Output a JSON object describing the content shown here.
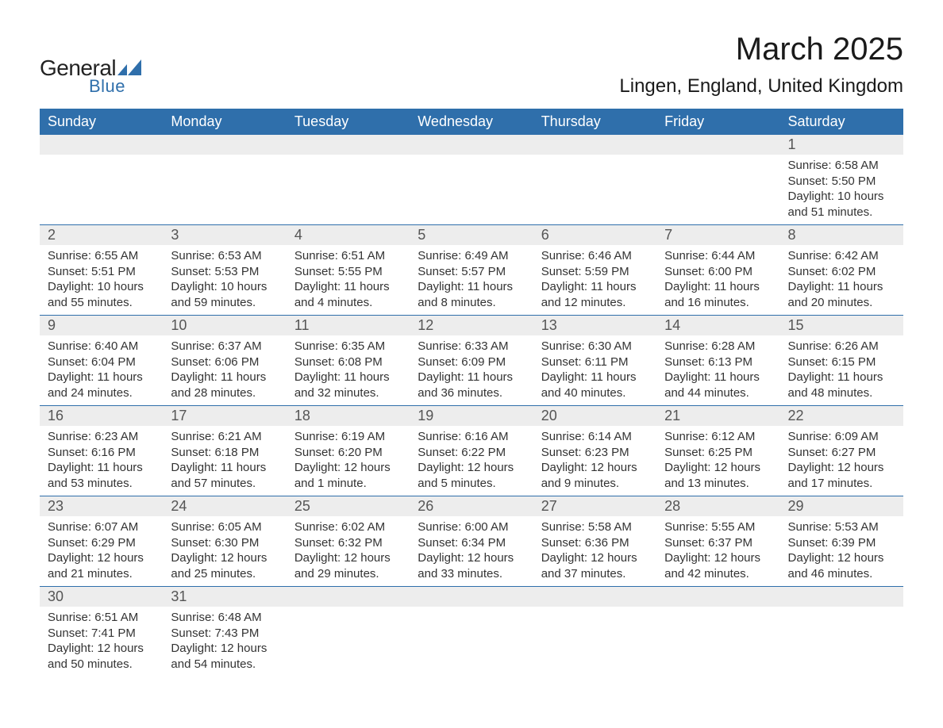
{
  "brand": {
    "name1": "General",
    "name2": "Blue"
  },
  "title": "March 2025",
  "location": "Lingen, England, United Kingdom",
  "colors": {
    "header_bg": "#2f6fab",
    "header_text": "#ffffff",
    "daynum_bg": "#ededed",
    "row_border": "#2f6fab",
    "body_text": "#333333",
    "title_text": "#1a1a1a",
    "logo_accent": "#2f6fab"
  },
  "layout": {
    "columns": 7,
    "rows": 6,
    "col_width_pct": 14.28
  },
  "day_headers": [
    "Sunday",
    "Monday",
    "Tuesday",
    "Wednesday",
    "Thursday",
    "Friday",
    "Saturday"
  ],
  "weeks": [
    [
      {
        "num": "",
        "lines": []
      },
      {
        "num": "",
        "lines": []
      },
      {
        "num": "",
        "lines": []
      },
      {
        "num": "",
        "lines": []
      },
      {
        "num": "",
        "lines": []
      },
      {
        "num": "",
        "lines": []
      },
      {
        "num": "1",
        "lines": [
          "Sunrise: 6:58 AM",
          "Sunset: 5:50 PM",
          "Daylight: 10 hours and 51 minutes."
        ]
      }
    ],
    [
      {
        "num": "2",
        "lines": [
          "Sunrise: 6:55 AM",
          "Sunset: 5:51 PM",
          "Daylight: 10 hours and 55 minutes."
        ]
      },
      {
        "num": "3",
        "lines": [
          "Sunrise: 6:53 AM",
          "Sunset: 5:53 PM",
          "Daylight: 10 hours and 59 minutes."
        ]
      },
      {
        "num": "4",
        "lines": [
          "Sunrise: 6:51 AM",
          "Sunset: 5:55 PM",
          "Daylight: 11 hours and 4 minutes."
        ]
      },
      {
        "num": "5",
        "lines": [
          "Sunrise: 6:49 AM",
          "Sunset: 5:57 PM",
          "Daylight: 11 hours and 8 minutes."
        ]
      },
      {
        "num": "6",
        "lines": [
          "Sunrise: 6:46 AM",
          "Sunset: 5:59 PM",
          "Daylight: 11 hours and 12 minutes."
        ]
      },
      {
        "num": "7",
        "lines": [
          "Sunrise: 6:44 AM",
          "Sunset: 6:00 PM",
          "Daylight: 11 hours and 16 minutes."
        ]
      },
      {
        "num": "8",
        "lines": [
          "Sunrise: 6:42 AM",
          "Sunset: 6:02 PM",
          "Daylight: 11 hours and 20 minutes."
        ]
      }
    ],
    [
      {
        "num": "9",
        "lines": [
          "Sunrise: 6:40 AM",
          "Sunset: 6:04 PM",
          "Daylight: 11 hours and 24 minutes."
        ]
      },
      {
        "num": "10",
        "lines": [
          "Sunrise: 6:37 AM",
          "Sunset: 6:06 PM",
          "Daylight: 11 hours and 28 minutes."
        ]
      },
      {
        "num": "11",
        "lines": [
          "Sunrise: 6:35 AM",
          "Sunset: 6:08 PM",
          "Daylight: 11 hours and 32 minutes."
        ]
      },
      {
        "num": "12",
        "lines": [
          "Sunrise: 6:33 AM",
          "Sunset: 6:09 PM",
          "Daylight: 11 hours and 36 minutes."
        ]
      },
      {
        "num": "13",
        "lines": [
          "Sunrise: 6:30 AM",
          "Sunset: 6:11 PM",
          "Daylight: 11 hours and 40 minutes."
        ]
      },
      {
        "num": "14",
        "lines": [
          "Sunrise: 6:28 AM",
          "Sunset: 6:13 PM",
          "Daylight: 11 hours and 44 minutes."
        ]
      },
      {
        "num": "15",
        "lines": [
          "Sunrise: 6:26 AM",
          "Sunset: 6:15 PM",
          "Daylight: 11 hours and 48 minutes."
        ]
      }
    ],
    [
      {
        "num": "16",
        "lines": [
          "Sunrise: 6:23 AM",
          "Sunset: 6:16 PM",
          "Daylight: 11 hours and 53 minutes."
        ]
      },
      {
        "num": "17",
        "lines": [
          "Sunrise: 6:21 AM",
          "Sunset: 6:18 PM",
          "Daylight: 11 hours and 57 minutes."
        ]
      },
      {
        "num": "18",
        "lines": [
          "Sunrise: 6:19 AM",
          "Sunset: 6:20 PM",
          "Daylight: 12 hours and 1 minute."
        ]
      },
      {
        "num": "19",
        "lines": [
          "Sunrise: 6:16 AM",
          "Sunset: 6:22 PM",
          "Daylight: 12 hours and 5 minutes."
        ]
      },
      {
        "num": "20",
        "lines": [
          "Sunrise: 6:14 AM",
          "Sunset: 6:23 PM",
          "Daylight: 12 hours and 9 minutes."
        ]
      },
      {
        "num": "21",
        "lines": [
          "Sunrise: 6:12 AM",
          "Sunset: 6:25 PM",
          "Daylight: 12 hours and 13 minutes."
        ]
      },
      {
        "num": "22",
        "lines": [
          "Sunrise: 6:09 AM",
          "Sunset: 6:27 PM",
          "Daylight: 12 hours and 17 minutes."
        ]
      }
    ],
    [
      {
        "num": "23",
        "lines": [
          "Sunrise: 6:07 AM",
          "Sunset: 6:29 PM",
          "Daylight: 12 hours and 21 minutes."
        ]
      },
      {
        "num": "24",
        "lines": [
          "Sunrise: 6:05 AM",
          "Sunset: 6:30 PM",
          "Daylight: 12 hours and 25 minutes."
        ]
      },
      {
        "num": "25",
        "lines": [
          "Sunrise: 6:02 AM",
          "Sunset: 6:32 PM",
          "Daylight: 12 hours and 29 minutes."
        ]
      },
      {
        "num": "26",
        "lines": [
          "Sunrise: 6:00 AM",
          "Sunset: 6:34 PM",
          "Daylight: 12 hours and 33 minutes."
        ]
      },
      {
        "num": "27",
        "lines": [
          "Sunrise: 5:58 AM",
          "Sunset: 6:36 PM",
          "Daylight: 12 hours and 37 minutes."
        ]
      },
      {
        "num": "28",
        "lines": [
          "Sunrise: 5:55 AM",
          "Sunset: 6:37 PM",
          "Daylight: 12 hours and 42 minutes."
        ]
      },
      {
        "num": "29",
        "lines": [
          "Sunrise: 5:53 AM",
          "Sunset: 6:39 PM",
          "Daylight: 12 hours and 46 minutes."
        ]
      }
    ],
    [
      {
        "num": "30",
        "lines": [
          "Sunrise: 6:51 AM",
          "Sunset: 7:41 PM",
          "Daylight: 12 hours and 50 minutes."
        ]
      },
      {
        "num": "31",
        "lines": [
          "Sunrise: 6:48 AM",
          "Sunset: 7:43 PM",
          "Daylight: 12 hours and 54 minutes."
        ]
      },
      {
        "num": "",
        "lines": []
      },
      {
        "num": "",
        "lines": []
      },
      {
        "num": "",
        "lines": []
      },
      {
        "num": "",
        "lines": []
      },
      {
        "num": "",
        "lines": []
      }
    ]
  ]
}
